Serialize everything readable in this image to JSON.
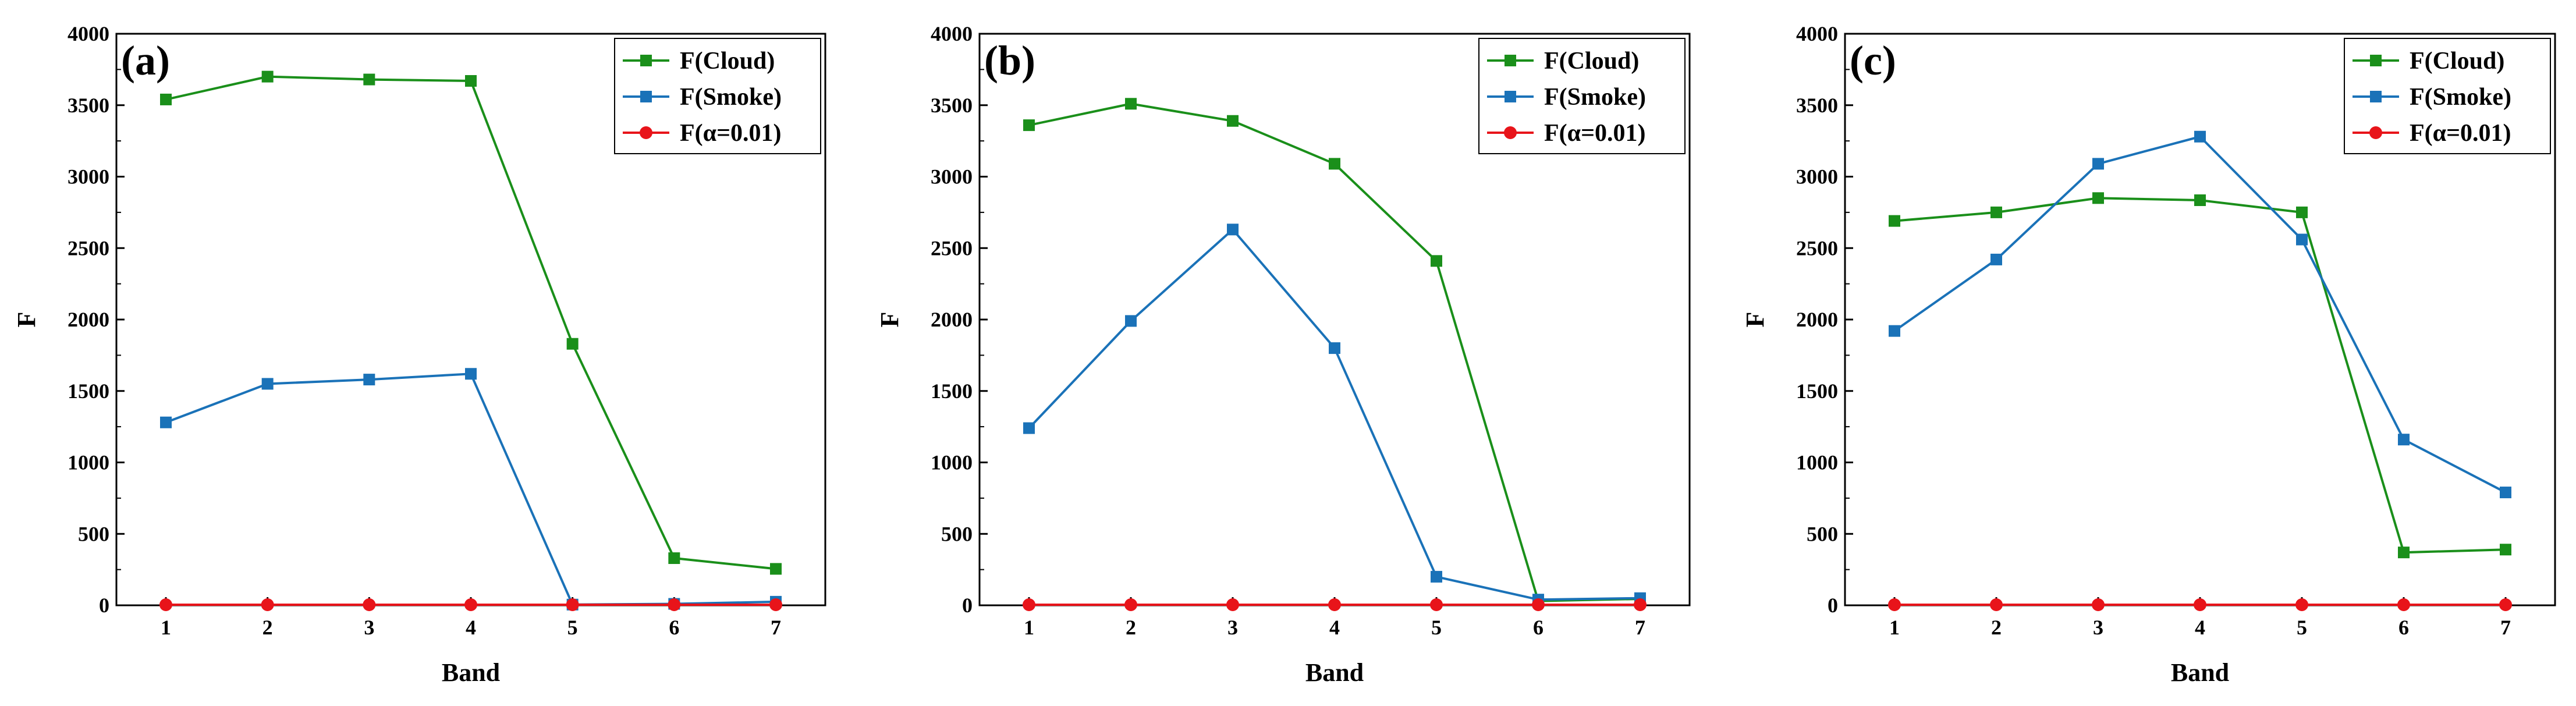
{
  "chart_data": [
    {
      "type": "line",
      "panel_label": "(a)",
      "xlabel": "Band",
      "ylabel": "F",
      "x": [
        1,
        2,
        3,
        4,
        5,
        6,
        7
      ],
      "ylim": [
        0,
        4000
      ],
      "yticks": [
        0,
        500,
        1000,
        1500,
        2000,
        2500,
        3000,
        3500,
        4000
      ],
      "legend_position": "top-right",
      "series": [
        {
          "name": "F(Cloud)",
          "color": "#1a8f1a",
          "marker": "square",
          "values": [
            3540,
            3700,
            3680,
            3670,
            1830,
            330,
            255
          ]
        },
        {
          "name": "F(Smoke)",
          "color": "#1a72b8",
          "marker": "square",
          "values": [
            1280,
            1550,
            1580,
            1620,
            5,
            10,
            25
          ]
        },
        {
          "name": "F(α=0.01)",
          "color": "#e8141a",
          "marker": "circle",
          "values": [
            4,
            4,
            4,
            4,
            4,
            4,
            4
          ]
        }
      ]
    },
    {
      "type": "line",
      "panel_label": "(b)",
      "xlabel": "Band",
      "ylabel": "F",
      "x": [
        1,
        2,
        3,
        4,
        5,
        6,
        7
      ],
      "ylim": [
        0,
        4000
      ],
      "yticks": [
        0,
        500,
        1000,
        1500,
        2000,
        2500,
        3000,
        3500,
        4000
      ],
      "legend_position": "top-right",
      "series": [
        {
          "name": "F(Cloud)",
          "color": "#1a8f1a",
          "marker": "square",
          "values": [
            3360,
            3510,
            3390,
            3090,
            2410,
            30,
            45
          ]
        },
        {
          "name": "F(Smoke)",
          "color": "#1a72b8",
          "marker": "square",
          "values": [
            1240,
            1990,
            2630,
            1800,
            200,
            40,
            50
          ]
        },
        {
          "name": "F(α=0.01)",
          "color": "#e8141a",
          "marker": "circle",
          "values": [
            4,
            4,
            4,
            4,
            4,
            4,
            4
          ]
        }
      ]
    },
    {
      "type": "line",
      "panel_label": "(c)",
      "xlabel": "Band",
      "ylabel": "F",
      "x": [
        1,
        2,
        3,
        4,
        5,
        6,
        7
      ],
      "ylim": [
        0,
        4000
      ],
      "yticks": [
        0,
        500,
        1000,
        1500,
        2000,
        2500,
        3000,
        3500,
        4000
      ],
      "legend_position": "top-right",
      "series": [
        {
          "name": "F(Cloud)",
          "color": "#1a8f1a",
          "marker": "square",
          "values": [
            2690,
            2750,
            2850,
            2835,
            2750,
            370,
            390
          ]
        },
        {
          "name": "F(Smoke)",
          "color": "#1a72b8",
          "marker": "square",
          "values": [
            1920,
            2420,
            3090,
            3280,
            2560,
            1160,
            790
          ]
        },
        {
          "name": "F(α=0.01)",
          "color": "#e8141a",
          "marker": "circle",
          "values": [
            4,
            4,
            4,
            4,
            4,
            4,
            4
          ]
        }
      ]
    }
  ]
}
